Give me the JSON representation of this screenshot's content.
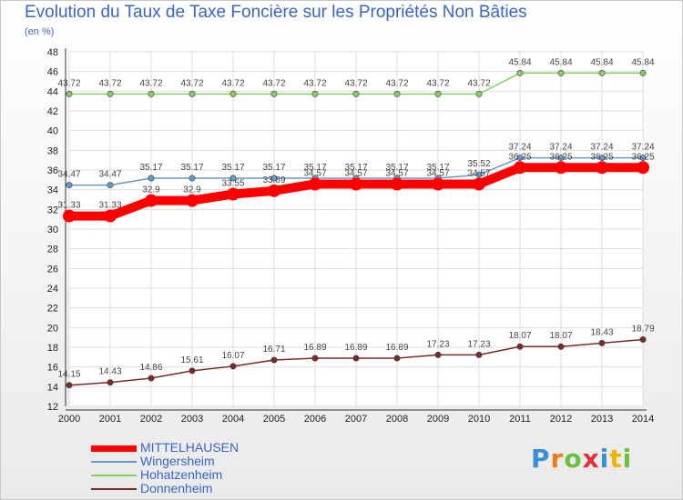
{
  "title": "Evolution du Taux de Taxe Foncière sur les Propriétés Non Bâties",
  "unit_label": "(en %)",
  "logo_text": "Proxiti",
  "chart_data": {
    "type": "line",
    "title": "Evolution du Taux de Taxe Foncière sur les Propriétés Non Bâties",
    "ylabel": "(en %)",
    "xlabel": "",
    "x": [
      "2000",
      "2001",
      "2002",
      "2003",
      "2004",
      "2005",
      "2006",
      "2007",
      "2008",
      "2009",
      "2010",
      "2011",
      "2012",
      "2013",
      "2014"
    ],
    "ylim": [
      12,
      48
    ],
    "yticks": [
      12,
      14,
      16,
      18,
      20,
      22,
      24,
      26,
      28,
      30,
      32,
      34,
      36,
      38,
      40,
      42,
      44,
      46,
      48
    ],
    "grid": true,
    "legend_position": "bottom-left",
    "series": [
      {
        "name": "MITTELHAUSEN",
        "color": "#ff0000",
        "values": [
          31.33,
          31.33,
          32.9,
          32.9,
          33.55,
          33.89,
          34.57,
          34.57,
          34.57,
          34.57,
          34.57,
          36.25,
          36.25,
          36.25,
          36.25
        ],
        "labels": [
          "31.33",
          "31.33",
          "32.9",
          "32.9",
          "33.55",
          "33.89",
          "34.57",
          "34.57",
          "34.57",
          "34.57",
          "34.57",
          "36.25",
          "36.25",
          "36.25",
          "36.25"
        ]
      },
      {
        "name": "Wingersheim",
        "color": "#6699cc",
        "values": [
          34.47,
          34.47,
          35.17,
          35.17,
          35.17,
          35.17,
          35.17,
          35.17,
          35.17,
          35.17,
          35.52,
          37.24,
          37.24,
          37.24,
          37.24
        ],
        "labels": [
          "34.47",
          "34.47",
          "35.17",
          "35.17",
          "35.17",
          "35.17",
          "35.17",
          "35.17",
          "35.17",
          "35.17",
          "35.52",
          "37.24",
          "37.24",
          "37.24",
          "37.24"
        ]
      },
      {
        "name": "Hohatzenheim",
        "color": "#88cc66",
        "values": [
          43.72,
          43.72,
          43.72,
          43.72,
          43.72,
          43.72,
          43.72,
          43.72,
          43.72,
          43.72,
          43.72,
          45.84,
          45.84,
          45.84,
          45.84
        ],
        "labels": [
          "43.72",
          "43.72",
          "43.72",
          "43.72",
          "43.72",
          "43.72",
          "43.72",
          "43.72",
          "43.72",
          "43.72",
          "43.72",
          "45.84",
          "45.84",
          "45.84",
          "45.84"
        ]
      },
      {
        "name": "Donnenheim",
        "color": "#7a2a2a",
        "values": [
          14.15,
          14.43,
          14.86,
          15.61,
          16.07,
          16.71,
          16.89,
          16.89,
          16.89,
          17.23,
          17.23,
          18.07,
          18.07,
          18.43,
          18.79
        ],
        "labels": [
          "14.15",
          "14.43",
          "14.86",
          "15.61",
          "16.07",
          "16.71",
          "16.89",
          "16.89",
          "16.89",
          "17.23",
          "17.23",
          "18.07",
          "18.07",
          "18.43",
          "18.79"
        ]
      }
    ]
  }
}
